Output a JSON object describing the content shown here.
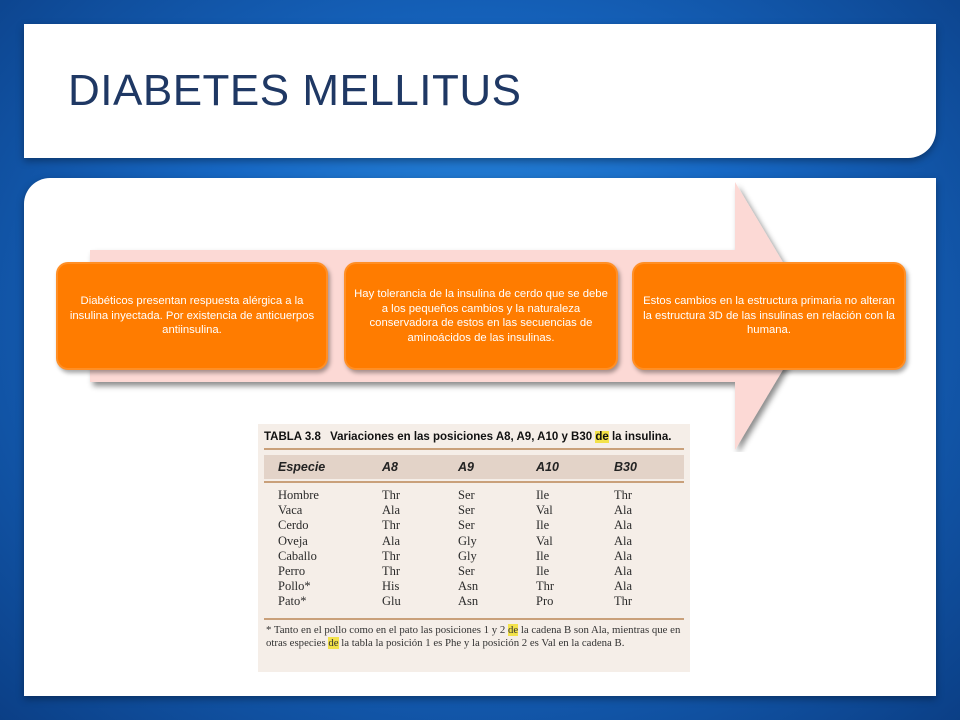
{
  "title": "DIABETES MELLITUS",
  "cards": [
    "Diabéticos presentan respuesta alérgica a la insulina inyectada. Por existencia de anticuerpos antiinsulina.",
    "Hay tolerancia de la insulina de cerdo que se debe a los pequeños cambios y la naturaleza conservadora de estos en las secuencias de aminoácidos de las insulinas.",
    "Estos cambios en la estructura primaria no alteran la estructura 3D de las insulinas en relación con la humana."
  ],
  "table": {
    "number": "TABLA 3.8",
    "caption_a": "Variaciones en las posiciones A8, A9, A10 y B30",
    "caption_hl": "de",
    "caption_b": "la insulina.",
    "headers": [
      "Especie",
      "A8",
      "A9",
      "A10",
      "B30"
    ],
    "rows": [
      [
        "Hombre",
        "Thr",
        "Ser",
        "Ile",
        "Thr"
      ],
      [
        "Vaca",
        "Ala",
        "Ser",
        "Val",
        "Ala"
      ],
      [
        "Cerdo",
        "Thr",
        "Ser",
        "Ile",
        "Ala"
      ],
      [
        "Oveja",
        "Ala",
        "Gly",
        "Val",
        "Ala"
      ],
      [
        "Caballo",
        "Thr",
        "Gly",
        "Ile",
        "Ala"
      ],
      [
        "Perro",
        "Thr",
        "Ser",
        "Ile",
        "Ala"
      ],
      [
        "Pollo*",
        "His",
        "Asn",
        "Thr",
        "Ala"
      ],
      [
        "Pato*",
        "Glu",
        "Asn",
        "Pro",
        "Thr"
      ]
    ],
    "footnote_a": "* Tanto en el pollo como en el pato las posiciones 1 y 2",
    "footnote_hl1": "de",
    "footnote_b": "la cadena B son Ala, mientras que en otras especies",
    "footnote_hl2": "de",
    "footnote_c": "la tabla la posición 1 es Phe y la posición 2 es Val en la cadena B."
  },
  "colors": {
    "background": "#1768c4",
    "title_text": "#1f3864",
    "card_fill": "#ff7c00",
    "arrow_fill": "#fcd9d5"
  }
}
